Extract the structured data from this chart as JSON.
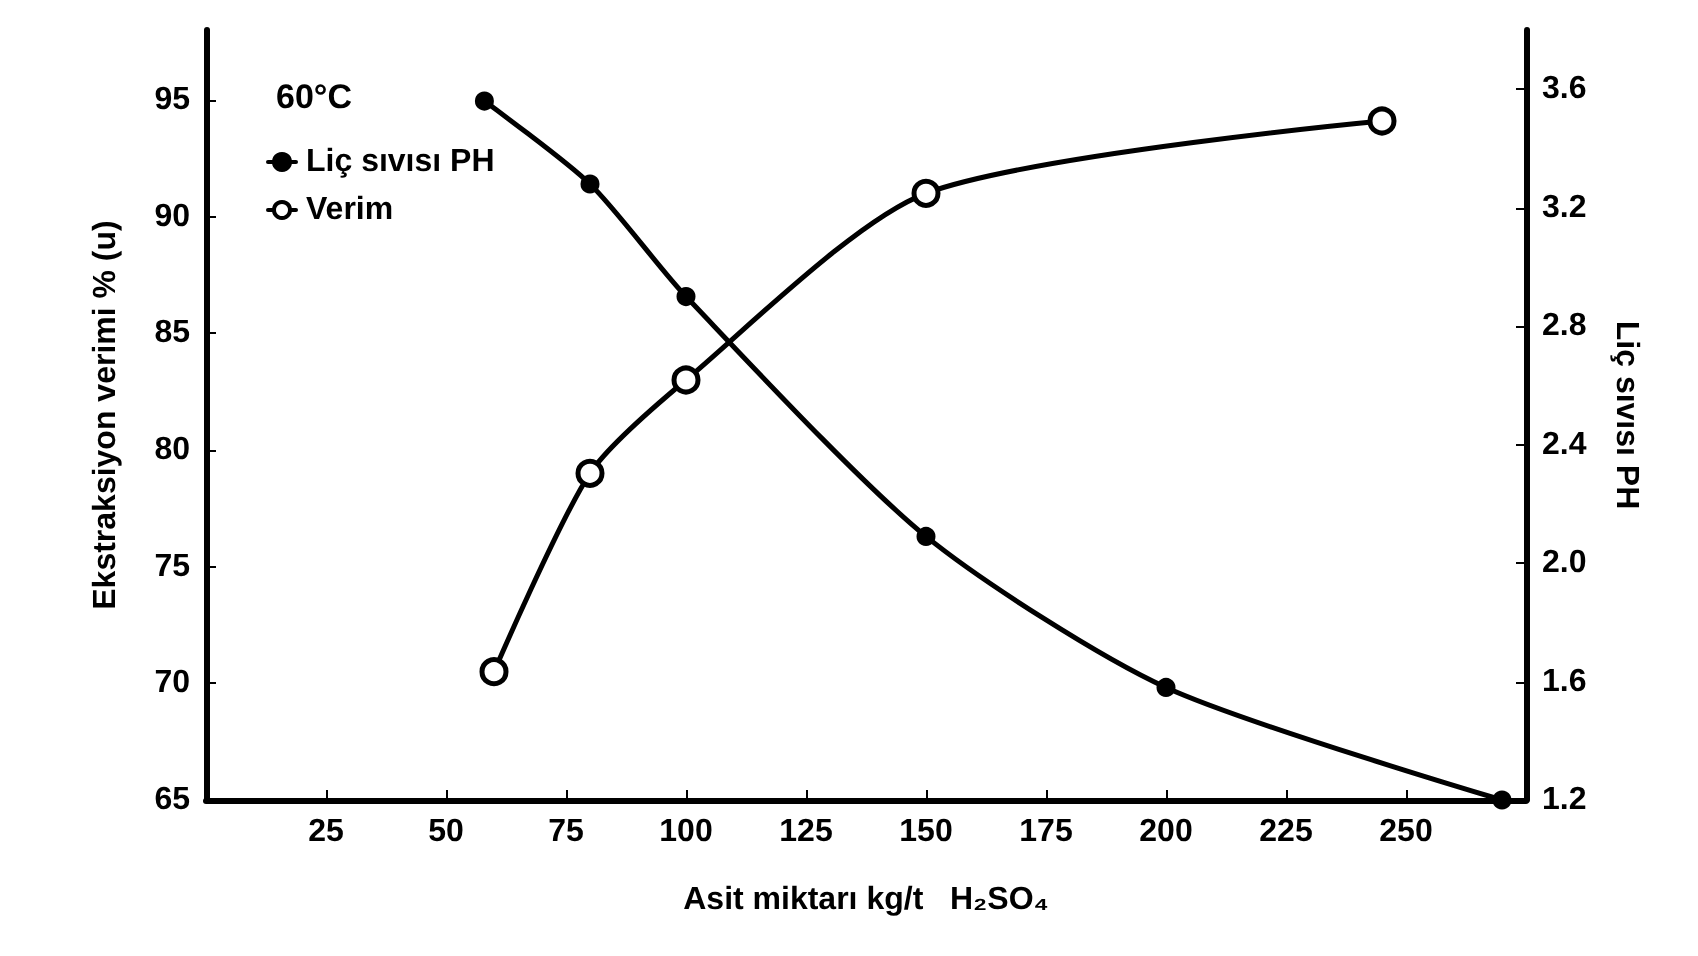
{
  "chart_data": {
    "type": "line",
    "xlabel": "Asit miktarı kg/t   H₂SO₄",
    "ylabel": "Ekstraksiyon verimi % (u)",
    "y2label": "Liç sıvısı PH",
    "annotations": [
      "60°C"
    ],
    "xlim": [
      0,
      275
    ],
    "xticks": [
      25,
      50,
      75,
      100,
      125,
      150,
      175,
      200,
      225,
      250
    ],
    "ylim": [
      65,
      98
    ],
    "yticks": [
      65,
      70,
      75,
      80,
      85,
      90,
      95
    ],
    "y2lim": [
      1.2,
      3.8
    ],
    "y2ticks": [
      {
        "value": 1.2,
        "label": "1.2"
      },
      {
        "value": 1.6,
        "label": "1.6"
      },
      {
        "value": 2,
        "label": "2.0"
      },
      {
        "value": 2.4,
        "label": "2.4"
      },
      {
        "value": 2.8,
        "label": "2.8"
      },
      {
        "value": 3.2,
        "label": "3.2"
      },
      {
        "value": 3.6,
        "label": "3.6"
      }
    ],
    "grid": false,
    "legend": "top left",
    "line_style": "solid",
    "series": [
      {
        "name": "Liç sıvısı PH",
        "color": "#000000",
        "axis": "y2",
        "marker": "circle",
        "x": [
          58,
          80,
          100,
          150,
          200,
          270
        ],
        "values": [
          3.56,
          3.28,
          2.9,
          2.09,
          1.58,
          1.2
        ]
      },
      {
        "name": "Verim",
        "color": "#000000",
        "marker": "circle",
        "x": [
          60,
          80,
          100,
          150,
          245
        ],
        "values": [
          70.5,
          79,
          83,
          91,
          94.1
        ]
      }
    ]
  }
}
